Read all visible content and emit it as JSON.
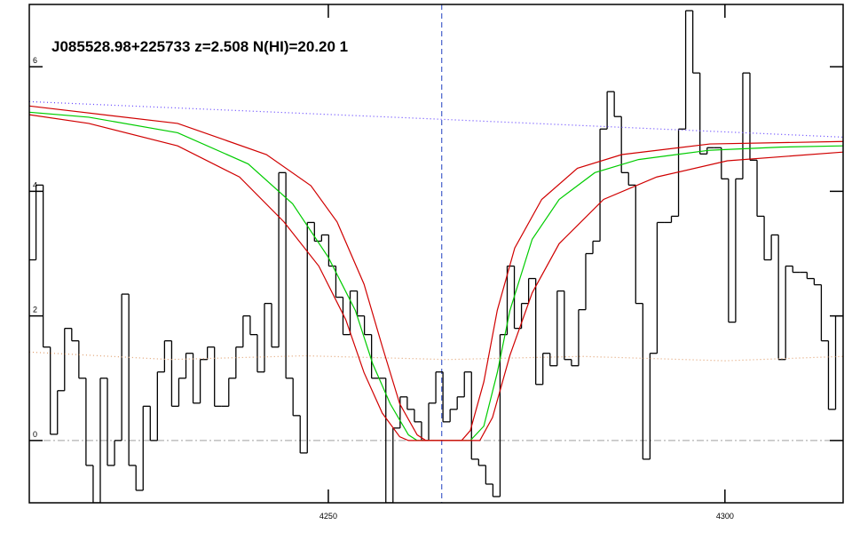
{
  "chart_data": {
    "type": "line",
    "title": "J085528.98+225733 z=2.508 N(HI)=20.20 1",
    "xlim": [
      4212.3,
      4314.9
    ],
    "ylim": [
      -1,
      7
    ],
    "xticks": [
      4250,
      4300
    ],
    "yticks": [
      0,
      2,
      4,
      6
    ],
    "zero_line": {
      "value": 0,
      "color": "#a0a0a0"
    },
    "marker_line": {
      "x": 4264.3,
      "color": "#2040c0"
    },
    "series": [
      {
        "style": "step",
        "color": "#000000",
        "x": [
          4212.7,
          4213.6,
          4214.5,
          4215.4,
          4216.3,
          4217.2,
          4218.1,
          4219.0,
          4219.9,
          4220.8,
          4221.7,
          4222.6,
          4223.5,
          4224.4,
          4225.3,
          4226.2,
          4227.1,
          4228.0,
          4228.9,
          4229.8,
          4230.7,
          4231.6,
          4232.5,
          4233.4,
          4234.3,
          4235.2,
          4236.1,
          4237.0,
          4237.9,
          4238.8,
          4239.7,
          4240.6,
          4241.5,
          4242.4,
          4243.3,
          4244.2,
          4245.1,
          4246.0,
          4246.9,
          4247.8,
          4248.7,
          4249.6,
          4250.5,
          4251.4,
          4252.3,
          4253.2,
          4254.1,
          4255.0,
          4255.9,
          4256.8,
          4257.7,
          4258.6,
          4259.5,
          4260.4,
          4261.3,
          4262.2,
          4263.1,
          4264.0,
          4264.9,
          4265.8,
          4266.7,
          4267.6,
          4268.5,
          4269.4,
          4270.3,
          4271.2,
          4272.1,
          4273.0,
          4273.9,
          4274.8,
          4275.7,
          4276.6,
          4277.5,
          4278.4,
          4279.3,
          4280.2,
          4281.1,
          4282.0,
          4282.9,
          4283.8,
          4284.7,
          4285.6,
          4286.5,
          4287.4,
          4288.3,
          4289.2,
          4290.1,
          4291.0,
          4291.9,
          4292.8,
          4293.7,
          4294.6,
          4295.5,
          4296.4,
          4297.3,
          4298.2,
          4299.1,
          4300.0,
          4300.9,
          4301.8,
          4302.7,
          4303.6,
          4304.5,
          4305.4,
          4306.3,
          4307.2,
          4308.1,
          4309.0,
          4309.9,
          4310.8,
          4311.7,
          4312.6,
          4313.5,
          4314.4
        ],
        "values": [
          2.9,
          4.1,
          1.5,
          0.1,
          0.8,
          1.8,
          1.6,
          1.0,
          -0.4,
          -1.0,
          1.0,
          -0.4,
          0.0,
          2.35,
          -0.4,
          -0.8,
          0.55,
          0.0,
          1.1,
          1.6,
          0.55,
          1.0,
          1.4,
          0.6,
          1.3,
          1.5,
          0.55,
          0.55,
          1.0,
          1.5,
          2.0,
          1.7,
          1.1,
          2.2,
          1.5,
          4.3,
          1.0,
          0.4,
          -0.2,
          3.5,
          3.2,
          3.3,
          2.8,
          2.3,
          1.7,
          2.4,
          2.0,
          1.7,
          1.0,
          1.0,
          -1.0,
          0.2,
          0.7,
          0.5,
          0.3,
          0.0,
          0.6,
          1.1,
          0.3,
          0.5,
          0.7,
          1.1,
          -0.3,
          -0.4,
          -0.7,
          -0.9,
          1.7,
          2.8,
          1.8,
          2.2,
          2.6,
          0.9,
          1.4,
          1.2,
          2.4,
          1.3,
          1.2,
          2.1,
          3.0,
          3.2,
          5.0,
          5.6,
          5.2,
          4.3,
          4.1,
          2.2,
          -0.3,
          1.4,
          3.5,
          3.5,
          3.6,
          5.0,
          6.9,
          5.9,
          4.6,
          4.7,
          4.7,
          4.2,
          1.9,
          4.2,
          5.9,
          4.5,
          3.6,
          2.9,
          3.3,
          1.3,
          2.8,
          2.7,
          2.7,
          2.6,
          2.5,
          1.6,
          0.5,
          2.0
        ]
      },
      {
        "style": "dotted",
        "color": "#e0a070",
        "x": [
          4212.3,
          4230,
          4247,
          4265,
          4282,
          4300,
          4314.9
        ],
        "values": [
          1.42,
          1.3,
          1.36,
          1.3,
          1.35,
          1.28,
          1.35
        ]
      },
      {
        "style": "dotted",
        "color": "#6040ff",
        "x": [
          4212.3,
          4263.6,
          4314.9
        ],
        "values": [
          5.44,
          5.16,
          4.87
        ]
      },
      {
        "style": "line",
        "color": "#00cc00",
        "x": [
          4212.3,
          4219.8,
          4231.0,
          4239.9,
          4245.5,
          4250.0,
          4253.4,
          4255.6,
          4257.8,
          4260.1,
          4261.2,
          4267.9,
          4269.6,
          4271.3,
          4272.9,
          4275.7,
          4279.1,
          4283.6,
          4289.1,
          4298.1,
          4307.0,
          4314.9
        ],
        "values": [
          5.27,
          5.19,
          4.94,
          4.44,
          3.8,
          2.94,
          2.09,
          1.23,
          0.59,
          0.09,
          0.0,
          0.0,
          0.23,
          1.09,
          2.09,
          3.23,
          3.87,
          4.3,
          4.51,
          4.66,
          4.71,
          4.73
        ]
      },
      {
        "style": "line",
        "color": "#d00000",
        "x": [
          4212.3,
          4231.0,
          4242.2,
          4247.8,
          4251.1,
          4254.5,
          4256.8,
          4259.0,
          4261.2,
          4262.3,
          4266.8,
          4267.9,
          4269.6,
          4271.3,
          4273.5,
          4276.9,
          4281.4,
          4287.0,
          4298.1,
          4314.9
        ],
        "values": [
          5.37,
          5.09,
          4.59,
          4.09,
          3.51,
          2.51,
          1.51,
          0.59,
          0.09,
          0.0,
          0.0,
          0.16,
          0.94,
          2.09,
          3.09,
          3.87,
          4.37,
          4.59,
          4.76,
          4.8
        ]
      },
      {
        "style": "line",
        "color": "#d00000",
        "x": [
          4212.3,
          4219.8,
          4231.0,
          4238.8,
          4244.4,
          4248.8,
          4252.2,
          4254.5,
          4256.8,
          4259.0,
          4260.1,
          4269.1,
          4270.7,
          4272.9,
          4275.7,
          4279.1,
          4284.7,
          4291.4,
          4300.3,
          4314.9
        ],
        "values": [
          5.23,
          5.09,
          4.73,
          4.23,
          3.51,
          2.8,
          1.94,
          1.09,
          0.44,
          0.06,
          0.0,
          0.0,
          0.37,
          1.37,
          2.37,
          3.16,
          3.87,
          4.23,
          4.49,
          4.63
        ]
      }
    ]
  }
}
